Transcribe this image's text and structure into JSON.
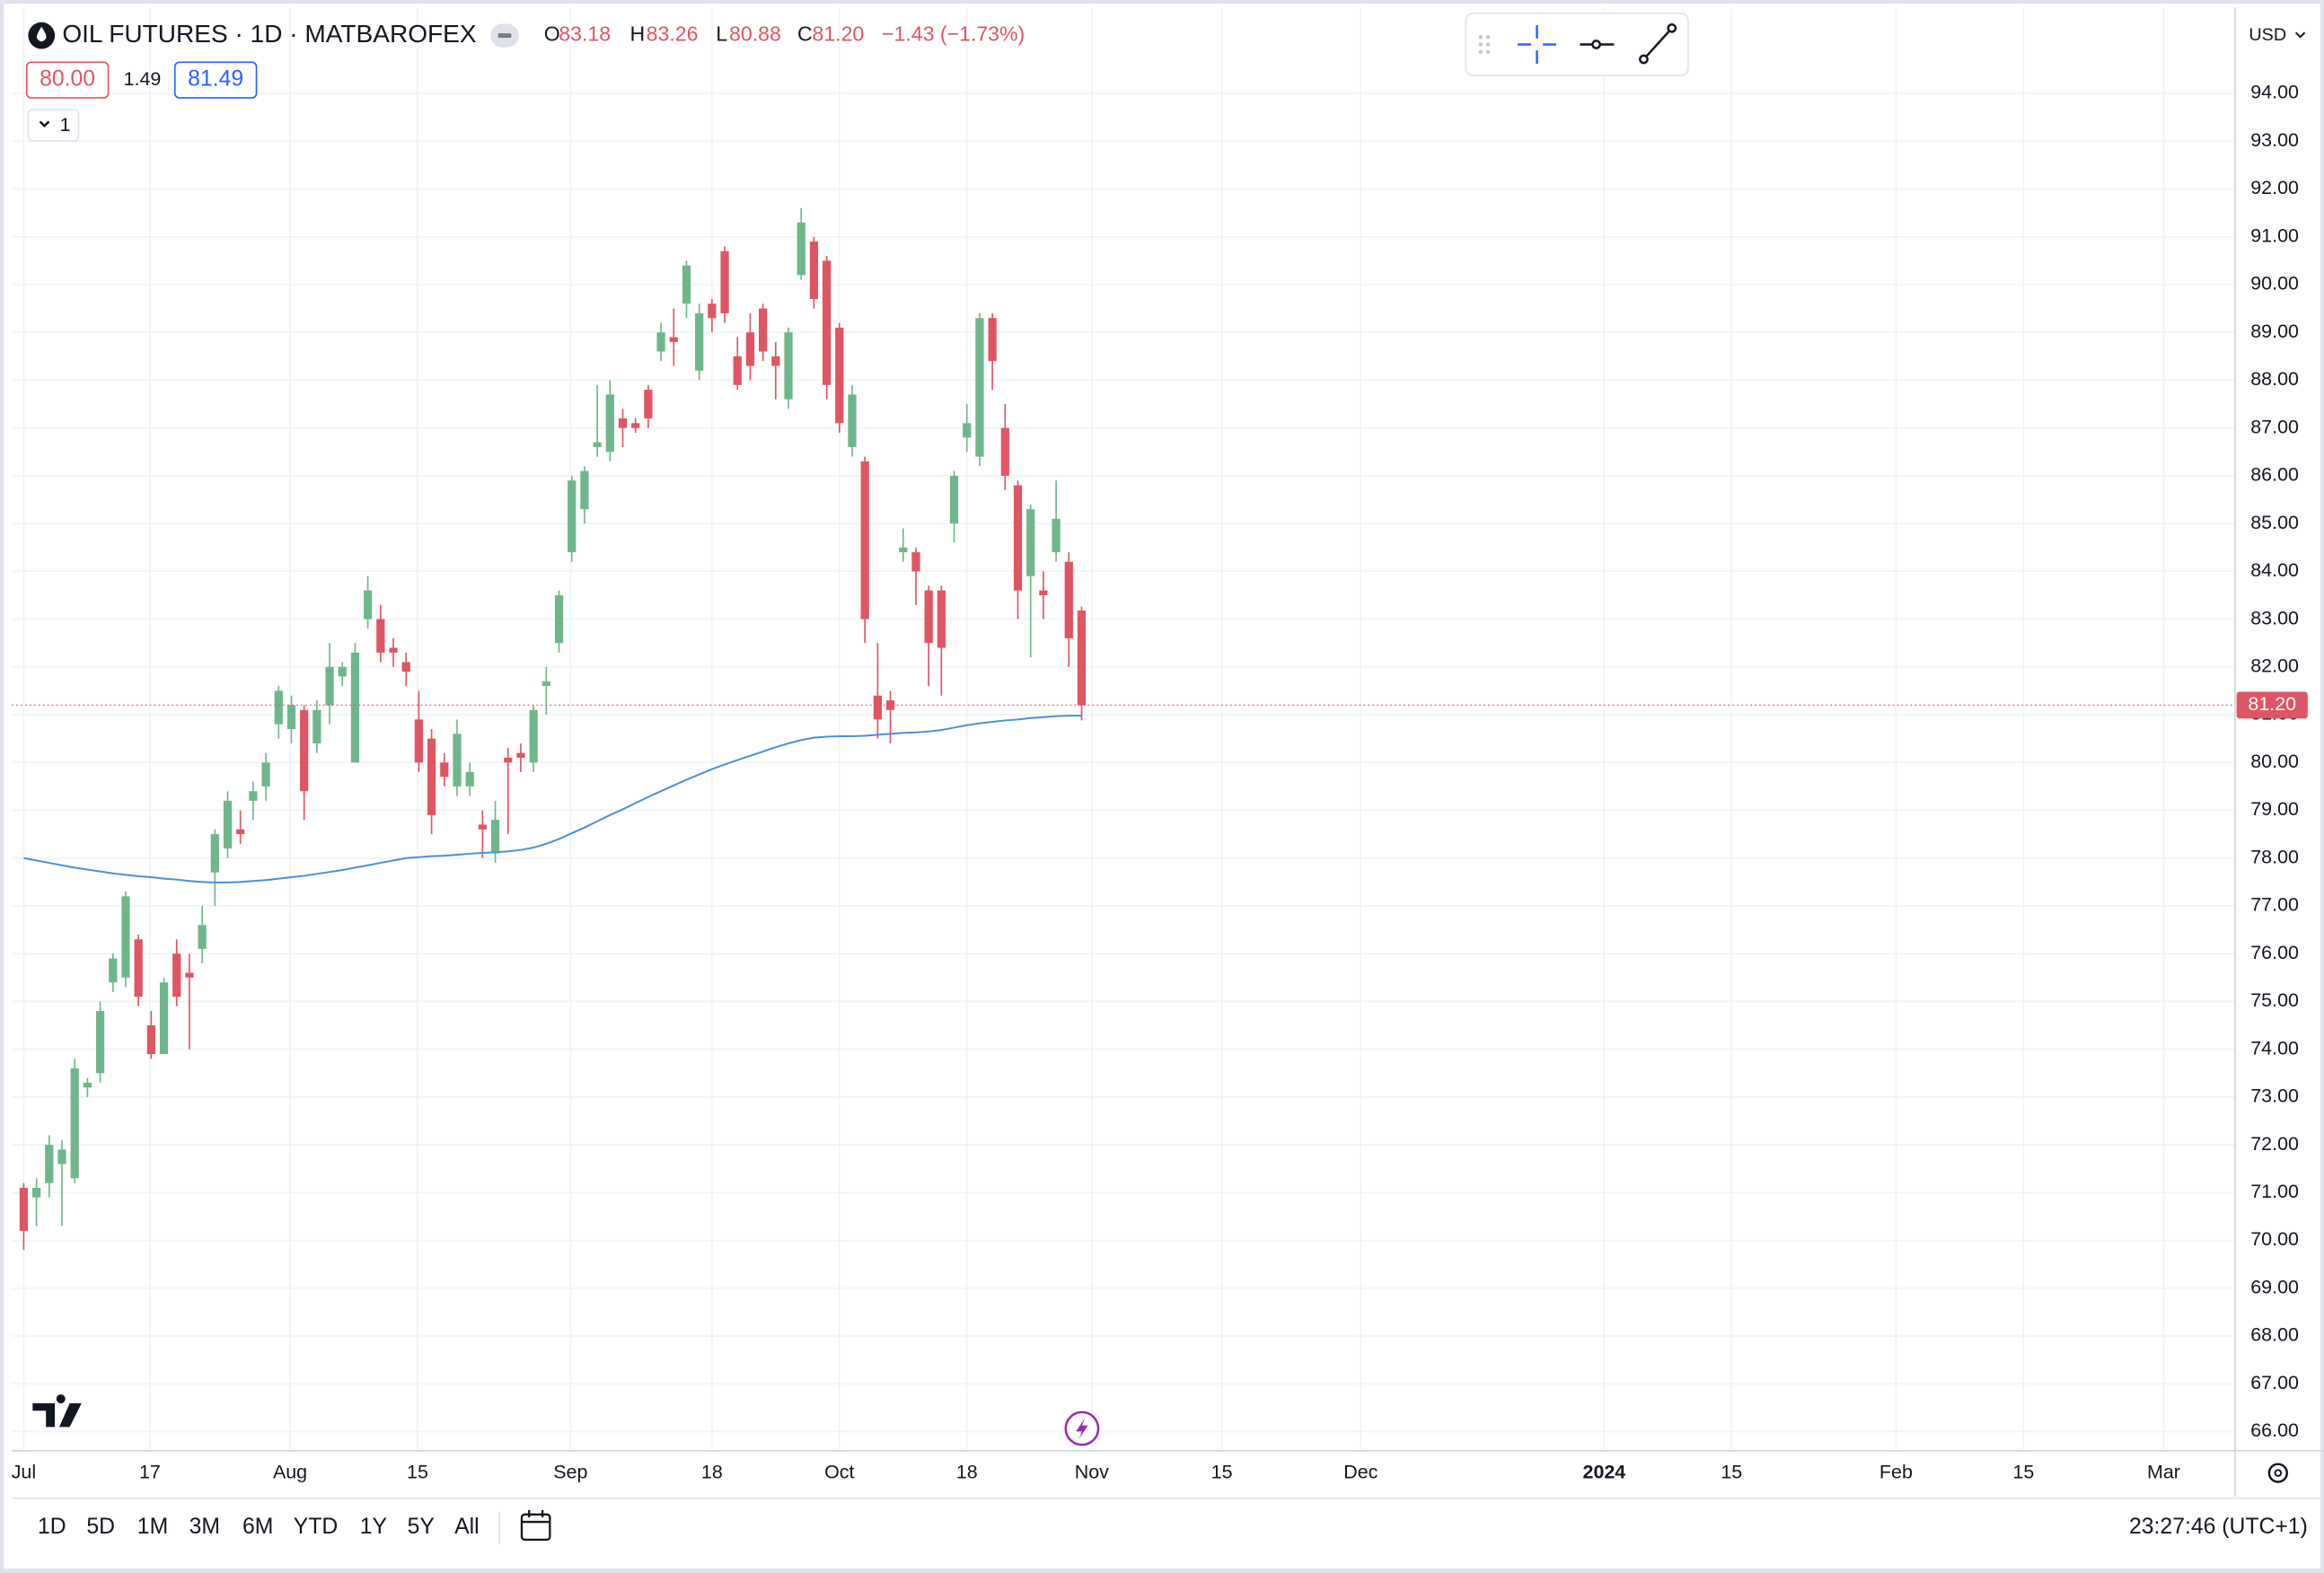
{
  "chart_data": {
    "type": "candlestick",
    "title": "OIL FUTURES · 1D · MATBAROFEX",
    "legend": {
      "open_label": "O",
      "open": "83.18",
      "high_label": "H",
      "high": "83.26",
      "low_label": "L",
      "low": "80.88",
      "close_label": "C",
      "close": "81.20",
      "change": "−1.43 (−1.73%)"
    },
    "quote": {
      "bid": "80.00",
      "spread": "1.49",
      "ask": "81.49"
    },
    "indicator_count": "1",
    "currency": "USD",
    "up_color": "#6fb78b",
    "down_color": "#e05563",
    "candles": {
      "open": [
        71.1,
        70.9,
        71.2,
        71.6,
        71.3,
        73.2,
        73.5,
        75.4,
        75.5,
        76.3,
        74.5,
        73.9,
        76.0,
        75.6,
        76.1,
        77.7,
        78.2,
        78.6,
        79.2,
        79.5,
        80.8,
        80.7,
        81.1,
        80.4,
        81.2,
        81.8,
        80.0,
        83.0,
        83.0,
        82.4,
        82.1,
        80.9,
        80.5,
        80.0,
        79.5,
        79.5,
        78.7,
        78.1,
        80.1,
        80.2,
        80.0,
        81.6,
        82.5,
        84.4,
        85.3,
        86.6,
        86.5,
        87.2,
        87.1,
        87.8,
        88.6,
        88.9,
        89.6,
        88.2,
        89.6,
        90.7,
        88.5,
        89.0,
        89.5,
        88.5,
        87.6,
        90.2,
        90.9,
        90.5,
        89.1,
        86.6,
        86.3,
        81.4,
        81.3,
        84.4,
        84.4,
        83.6,
        83.6,
        85.0,
        86.8,
        86.4,
        89.3,
        87.0,
        85.8,
        83.9,
        83.6,
        84.4,
        84.2,
        83.18
      ],
      "high": [
        71.2,
        71.3,
        72.2,
        72.1,
        73.8,
        73.4,
        75.0,
        76.0,
        77.3,
        76.4,
        74.8,
        75.5,
        76.3,
        76.0,
        77.0,
        78.6,
        79.4,
        79.0,
        79.6,
        80.2,
        81.6,
        81.4,
        81.2,
        81.3,
        82.5,
        82.1,
        82.5,
        83.9,
        83.3,
        82.6,
        82.3,
        81.5,
        80.7,
        80.2,
        80.9,
        80.0,
        79.0,
        79.2,
        80.3,
        80.4,
        81.2,
        82.0,
        83.6,
        86.0,
        86.2,
        87.9,
        88.0,
        87.4,
        87.2,
        87.9,
        89.2,
        89.5,
        90.5,
        89.6,
        89.7,
        90.8,
        88.9,
        89.4,
        89.6,
        88.8,
        89.1,
        91.6,
        91.0,
        90.6,
        89.2,
        87.9,
        86.4,
        82.5,
        81.5,
        84.9,
        84.5,
        83.7,
        83.7,
        86.1,
        87.5,
        89.4,
        89.4,
        87.5,
        85.9,
        85.4,
        84.0,
        85.9,
        84.4,
        83.26
      ],
      "low": [
        69.8,
        70.3,
        70.9,
        70.3,
        71.2,
        73.0,
        73.3,
        75.2,
        75.3,
        74.9,
        73.8,
        73.9,
        74.9,
        74.0,
        75.8,
        77.0,
        78.0,
        78.3,
        78.8,
        79.2,
        80.5,
        80.4,
        78.8,
        80.2,
        80.8,
        81.6,
        80.0,
        82.8,
        82.1,
        82.0,
        81.6,
        79.8,
        78.5,
        79.5,
        79.3,
        79.3,
        78.0,
        77.9,
        78.5,
        79.8,
        79.8,
        81.0,
        82.3,
        84.2,
        85.0,
        86.4,
        86.3,
        86.6,
        86.9,
        87.0,
        88.4,
        88.3,
        89.3,
        88.0,
        89.0,
        89.2,
        87.8,
        88.0,
        88.4,
        87.6,
        87.4,
        90.1,
        89.5,
        87.6,
        86.9,
        86.4,
        82.5,
        80.5,
        80.4,
        84.2,
        83.3,
        81.6,
        81.4,
        84.6,
        86.5,
        86.2,
        87.8,
        85.7,
        83.0,
        82.2,
        83.0,
        84.2,
        82.0,
        80.88
      ],
      "close": [
        70.2,
        71.1,
        72.0,
        71.9,
        73.6,
        73.3,
        74.8,
        75.9,
        77.2,
        75.1,
        73.9,
        75.4,
        75.1,
        75.5,
        76.6,
        78.5,
        79.2,
        78.5,
        79.4,
        80.0,
        81.5,
        81.2,
        79.4,
        81.1,
        82.0,
        82.0,
        82.3,
        83.6,
        82.3,
        82.3,
        81.9,
        80.0,
        78.9,
        79.7,
        80.6,
        79.8,
        78.6,
        78.8,
        80.0,
        80.1,
        81.1,
        81.7,
        83.5,
        85.9,
        86.1,
        86.7,
        87.7,
        87.0,
        87.0,
        87.2,
        89.0,
        88.8,
        90.4,
        89.4,
        89.3,
        89.4,
        87.9,
        88.3,
        88.6,
        88.3,
        89.0,
        91.3,
        89.7,
        87.9,
        87.1,
        87.7,
        83.0,
        80.9,
        81.1,
        84.5,
        84.0,
        82.5,
        82.4,
        86.0,
        87.1,
        89.3,
        88.4,
        86.0,
        83.6,
        85.3,
        83.5,
        85.1,
        82.6,
        81.2
      ]
    },
    "moving_average": {
      "color": "#4a90d9",
      "values": [
        78.0,
        77.95,
        77.9,
        77.85,
        77.8,
        77.76,
        77.72,
        77.68,
        77.65,
        77.62,
        77.6,
        77.57,
        77.55,
        77.52,
        77.5,
        77.49,
        77.49,
        77.5,
        77.52,
        77.54,
        77.57,
        77.6,
        77.63,
        77.67,
        77.71,
        77.75,
        77.8,
        77.85,
        77.9,
        77.95,
        78.0,
        78.02,
        78.04,
        78.05,
        78.07,
        78.09,
        78.11,
        78.12,
        78.14,
        78.17,
        78.22,
        78.3,
        78.4,
        78.52,
        78.64,
        78.77,
        78.9,
        79.02,
        79.15,
        79.28,
        79.4,
        79.52,
        79.64,
        79.75,
        79.86,
        79.96,
        80.05,
        80.14,
        80.23,
        80.32,
        80.4,
        80.47,
        80.52,
        80.54,
        80.55,
        80.55,
        80.56,
        80.58,
        80.6,
        80.62,
        80.63,
        80.65,
        80.68,
        80.73,
        80.78,
        80.82,
        80.85,
        80.88,
        80.9,
        80.93,
        80.95,
        80.97,
        80.98,
        80.98
      ]
    },
    "last_price_color": "#e05563",
    "xlim": [
      -0.93,
      173.5
    ],
    "ylim": [
      65.63,
      95.8
    ],
    "xticks": [
      {
        "value": 0,
        "label": "Jul"
      },
      {
        "value": 9.9,
        "label": "17"
      },
      {
        "value": 20.9,
        "label": "Aug"
      },
      {
        "value": 30.9,
        "label": "15"
      },
      {
        "value": 42.9,
        "label": "Sep"
      },
      {
        "value": 54,
        "label": "18"
      },
      {
        "value": 64,
        "label": "Oct"
      },
      {
        "value": 74,
        "label": "18"
      },
      {
        "value": 83.8,
        "label": "Nov"
      },
      {
        "value": 94,
        "label": "15"
      },
      {
        "value": 104.9,
        "label": "Dec"
      },
      {
        "value": 124,
        "label": "2024"
      },
      {
        "value": 134,
        "label": "15"
      },
      {
        "value": 146.9,
        "label": "Feb"
      },
      {
        "value": 156.9,
        "label": "15"
      },
      {
        "value": 167.9,
        "label": "Mar"
      }
    ],
    "yticks": [
      {
        "value": 66,
        "label": "66.00"
      },
      {
        "value": 67,
        "label": "67.00"
      },
      {
        "value": 68,
        "label": "68.00"
      },
      {
        "value": 69,
        "label": "69.00"
      },
      {
        "value": 70,
        "label": "70.00"
      },
      {
        "value": 71,
        "label": "71.00"
      },
      {
        "value": 72,
        "label": "72.00"
      },
      {
        "value": 73,
        "label": "73.00"
      },
      {
        "value": 74,
        "label": "74.00"
      },
      {
        "value": 75,
        "label": "75.00"
      },
      {
        "value": 76,
        "label": "76.00"
      },
      {
        "value": 77,
        "label": "77.00"
      },
      {
        "value": 78,
        "label": "78.00"
      },
      {
        "value": 79,
        "label": "79.00"
      },
      {
        "value": 80,
        "label": "80.00"
      },
      {
        "value": 81,
        "label": "81.00"
      },
      {
        "value": 82,
        "label": "82.00"
      },
      {
        "value": 83,
        "label": "83.00"
      },
      {
        "value": 84,
        "label": "84.00"
      },
      {
        "value": 85,
        "label": "85.00"
      },
      {
        "value": 86,
        "label": "86.00"
      },
      {
        "value": 87,
        "label": "87.00"
      },
      {
        "value": 88,
        "label": "88.00"
      },
      {
        "value": 89,
        "label": "89.00"
      },
      {
        "value": 90,
        "label": "90.00"
      },
      {
        "value": 91,
        "label": "91.00"
      },
      {
        "value": 92,
        "label": "92.00"
      },
      {
        "value": 93,
        "label": "93.00"
      },
      {
        "value": 94,
        "label": "94.00"
      }
    ],
    "grid": true,
    "range_buttons": [
      "1D",
      "5D",
      "1M",
      "3M",
      "6M",
      "YTD",
      "1Y",
      "5Y",
      "All"
    ],
    "clock": "23:27:46 (UTC+1)"
  }
}
